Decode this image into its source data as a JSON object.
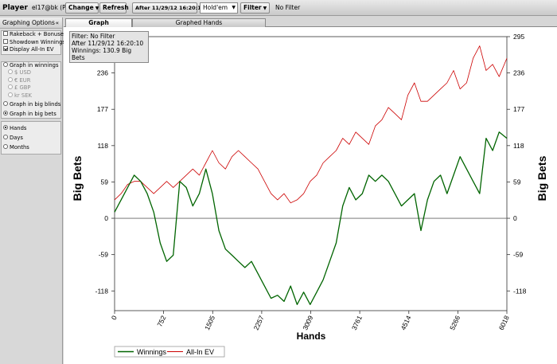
{
  "toolbar": {
    "player_label": "Player",
    "player_value": "el17@bk (PS)",
    "change_label": "Change",
    "refresh_label": "Refresh",
    "date_label": "After 11/29/12 16:20:10",
    "game_value": "Hold'em",
    "filter_label": "Filter",
    "filter_status": "No Filter"
  },
  "sidebar": {
    "title": "Graphing Options",
    "checkboxes": [
      {
        "label": "Rakeback + Bonuses",
        "checked": false
      },
      {
        "label": "Showdown Winnings",
        "checked": false
      },
      {
        "label": "Display All-In EV",
        "checked": true
      }
    ],
    "units": {
      "winnings_label": "Graph in winnings",
      "currencies": [
        "$ USD",
        "€ EUR",
        "£ GBP",
        "kr SEK"
      ],
      "big_blinds_label": "Graph in big blinds",
      "big_bets_label": "Graph in big bets"
    },
    "x_axis": [
      "Hands",
      "Days",
      "Months"
    ]
  },
  "tabs": [
    "Graph",
    "Graphed Hands"
  ],
  "info": {
    "filter": "Filter: No Filter",
    "date": "After 11/29/12 16:20:10",
    "winnings": "Winnings: 130.9 Big Bets"
  },
  "chart_data": {
    "type": "line",
    "xlabel": "Hands",
    "ylabel": "Big Bets",
    "xlim": [
      0,
      6018
    ],
    "ylim": [
      -150,
      295
    ],
    "x_ticks": [
      "0",
      "752",
      "1505",
      "2257",
      "3009",
      "3761",
      "4514",
      "5266",
      "6018"
    ],
    "y_ticks": [
      "-118",
      "-59",
      "0",
      "59",
      "118",
      "177",
      "236",
      "295"
    ],
    "legend_position": "bottom-left",
    "series": [
      {
        "name": "Winnings",
        "color": "#006400",
        "x": [
          0,
          100,
          200,
          300,
          400,
          500,
          600,
          700,
          800,
          900,
          1000,
          1100,
          1200,
          1300,
          1400,
          1500,
          1600,
          1700,
          1800,
          1900,
          2000,
          2100,
          2200,
          2300,
          2400,
          2500,
          2600,
          2700,
          2800,
          2900,
          3000,
          3100,
          3200,
          3300,
          3400,
          3500,
          3600,
          3700,
          3800,
          3900,
          4000,
          4100,
          4200,
          4300,
          4400,
          4500,
          4600,
          4700,
          4800,
          4900,
          5000,
          5100,
          5200,
          5300,
          5400,
          5500,
          5600,
          5700,
          5800,
          5900,
          6018
        ],
        "values": [
          10,
          30,
          50,
          70,
          60,
          40,
          10,
          -40,
          -70,
          -60,
          60,
          50,
          20,
          40,
          80,
          40,
          -20,
          -50,
          -60,
          -70,
          -80,
          -70,
          -90,
          -110,
          -130,
          -125,
          -135,
          -110,
          -140,
          -120,
          -140,
          -120,
          -100,
          -70,
          -40,
          20,
          50,
          30,
          40,
          70,
          60,
          70,
          60,
          40,
          20,
          30,
          40,
          -20,
          30,
          60,
          70,
          40,
          70,
          100,
          80,
          60,
          40,
          130,
          110,
          140,
          130
        ]
      },
      {
        "name": "All-In EV",
        "color": "#cc0000",
        "x": [
          0,
          100,
          200,
          300,
          400,
          500,
          600,
          700,
          800,
          900,
          1000,
          1100,
          1200,
          1300,
          1400,
          1500,
          1600,
          1700,
          1800,
          1900,
          2000,
          2100,
          2200,
          2300,
          2400,
          2500,
          2600,
          2700,
          2800,
          2900,
          3000,
          3100,
          3200,
          3300,
          3400,
          3500,
          3600,
          3700,
          3800,
          3900,
          4000,
          4100,
          4200,
          4300,
          4400,
          4500,
          4600,
          4700,
          4800,
          4900,
          5000,
          5100,
          5200,
          5300,
          5400,
          5500,
          5600,
          5700,
          5800,
          5900,
          6018
        ],
        "values": [
          30,
          40,
          55,
          60,
          60,
          50,
          40,
          50,
          60,
          50,
          60,
          70,
          80,
          70,
          90,
          110,
          90,
          80,
          100,
          110,
          100,
          90,
          80,
          60,
          40,
          30,
          40,
          25,
          30,
          40,
          60,
          70,
          90,
          100,
          110,
          130,
          120,
          140,
          130,
          120,
          150,
          160,
          180,
          170,
          160,
          200,
          220,
          190,
          190,
          200,
          210,
          220,
          240,
          210,
          220,
          260,
          280,
          240,
          250,
          230,
          260
        ]
      }
    ]
  }
}
